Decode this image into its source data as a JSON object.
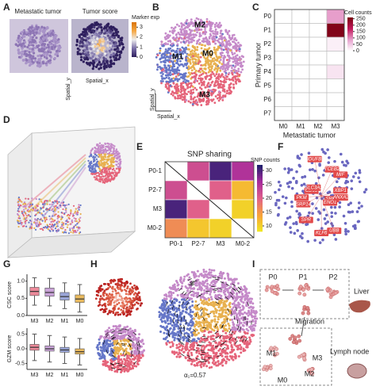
{
  "figure": {
    "panel_letters": [
      "A",
      "B",
      "C",
      "D",
      "E",
      "F",
      "G",
      "H",
      "I"
    ],
    "a": {
      "titles": [
        "Metastatic tumor",
        "Tumor score"
      ],
      "axis_y": "Spatial_y",
      "axis_x": "Spatial_x",
      "colorbar": {
        "title": "Marker exp",
        "lim": [
          0,
          3.5
        ],
        "ticks": [
          0,
          1,
          2,
          3
        ],
        "colors": [
          "#2d1e5c",
          "#7b6fa8",
          "#eeeeee",
          "#f5a742",
          "#d9730a"
        ]
      }
    },
    "b": {
      "clusters": [
        {
          "label": "M2",
          "color": "#c58ac9"
        },
        {
          "label": "M1",
          "color": "#6677c8"
        },
        {
          "label": "M0",
          "color": "#e8b04f"
        },
        {
          "label": "M3",
          "color": "#e5647a"
        }
      ],
      "axis_y": "Spatial_y",
      "axis_x": "Spatial_x"
    },
    "f": {
      "genes": [
        "SRP9",
        "SRP14",
        "TCEB2",
        "UBB",
        "CD63",
        "XBP1",
        "SPR",
        "NDUFB1",
        "ENO1",
        "PKM",
        "MIF",
        "KLF6",
        "SLC3A2",
        "ANXA2"
      ]
    },
    "h": {
      "annotation": "α₁=0.57"
    },
    "i": {
      "stages": [
        "P0",
        "P1",
        "P2"
      ],
      "migration": "Migration",
      "liver": "Liver",
      "mets": [
        "M1",
        "M3",
        "M2",
        "M0"
      ],
      "lymph_node": "Lymph node"
    }
  },
  "chart_data": [
    {
      "type": "heatmap",
      "rows": [
        "P0",
        "P1",
        "P2",
        "P3",
        "P4",
        "P5",
        "P6",
        "P7"
      ],
      "columns": [
        "M0",
        "M1",
        "M2",
        "M3"
      ],
      "values": [
        [
          0,
          0,
          0,
          90
        ],
        [
          0,
          0,
          0,
          250
        ],
        [
          0,
          0,
          0,
          15
        ],
        [
          0,
          0,
          0,
          0
        ],
        [
          0,
          0,
          0,
          25
        ],
        [
          0,
          0,
          0,
          0
        ],
        [
          0,
          0,
          0,
          0
        ],
        [
          0,
          0,
          0,
          0
        ]
      ],
      "ylabel": "Primary tumor",
      "xlabel": "Metastatic tumor",
      "colorbar_title": "Cell counts",
      "clim": [
        0,
        260
      ],
      "cticks": [
        0,
        50,
        100,
        150,
        200,
        250
      ],
      "cmap": [
        "#ffffff",
        "#e8a3cf",
        "#c2185b",
        "#7a0010"
      ]
    },
    {
      "type": "heatmap",
      "title": "SNP sharing",
      "rows": [
        "P0-1",
        "P2-7",
        "M3",
        "M0-2"
      ],
      "columns": [
        "P0-1",
        "P2-7",
        "M3",
        "M0-2"
      ],
      "values": [
        [
          null,
          22,
          30,
          25
        ],
        [
          22,
          null,
          20,
          12
        ],
        [
          30,
          20,
          null,
          10
        ],
        [
          16,
          11,
          10,
          null
        ]
      ],
      "colorbar_title": "SNP counts",
      "clim": [
        8,
        32
      ],
      "cticks": [
        10,
        15,
        20,
        25,
        30
      ],
      "cmap": [
        "#f0e921",
        "#f7a23a",
        "#e0608a",
        "#a62a9c",
        "#1b1f6b"
      ]
    },
    {
      "type": "box",
      "ylabel": "CSC score",
      "categories": [
        "M3",
        "M2",
        "M1",
        "M0"
      ],
      "colors": [
        "#ec8a9a",
        "#c9a3d8",
        "#9aa6d8",
        "#e8b95e"
      ],
      "whisker_low": [
        0.3,
        0.28,
        0.2,
        0.1
      ],
      "q1": [
        0.58,
        0.56,
        0.45,
        0.38
      ],
      "median": [
        0.7,
        0.67,
        0.55,
        0.48
      ],
      "q3": [
        0.82,
        0.8,
        0.67,
        0.6
      ],
      "whisker_high": [
        1.1,
        1.08,
        0.95,
        0.9
      ],
      "ylim": [
        0,
        1.2
      ],
      "yticks": [
        {
          "value": 0,
          "label": "0.0"
        },
        0.5,
        {
          "value": 1,
          "label": "1.0"
        }
      ]
    },
    {
      "type": "box",
      "ylabel": "GZM score",
      "categories": [
        "M3",
        "M2",
        "M1",
        "M0"
      ],
      "colors": [
        "#ec8a9a",
        "#c9a3d8",
        "#9aa6d8",
        "#e8b95e"
      ],
      "whisker_low": [
        -0.4,
        -0.45,
        -0.5,
        -0.55
      ],
      "q1": [
        -0.05,
        -0.08,
        -0.12,
        -0.18
      ],
      "median": [
        0.05,
        0,
        -0.04,
        -0.1
      ],
      "q3": [
        0.15,
        0.1,
        0.05,
        0
      ],
      "whisker_high": [
        0.5,
        0.45,
        0.4,
        0.35
      ],
      "ylim": [
        -0.7,
        0.7
      ],
      "yticks": [
        -0.5,
        {
          "value": 0,
          "label": "0.0"
        },
        0.5
      ]
    }
  ]
}
